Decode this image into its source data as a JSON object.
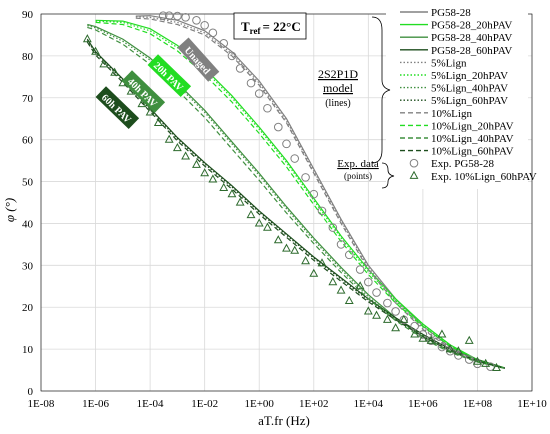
{
  "chart_data": {
    "type": "line",
    "title": "",
    "xlabel": "aT.fr (Hz)",
    "ylabel": "φ (°)",
    "x_scale": "log",
    "xlim": [
      1e-08,
      10000000000.0
    ],
    "ylim": [
      0,
      90
    ],
    "x_ticks": [
      "1E-08",
      "1E-06",
      "1E-04",
      "1E-02",
      "1E+00",
      "1E+02",
      "1E+04",
      "1E+06",
      "1E+08",
      "1E+10"
    ],
    "y_ticks": [
      "0",
      "10",
      "20",
      "30",
      "40",
      "50",
      "60",
      "70",
      "80",
      "90"
    ],
    "grid": "both",
    "legend_position": "top-right",
    "colors": {
      "unaged": "#808080",
      "h20": "#22dd22",
      "h40": "#3f8f3f",
      "h60": "#1d4d1d",
      "points": "#808080",
      "tri": "#2d6a2d"
    },
    "series": [
      {
        "name": "PG58-28",
        "style": "solid",
        "color": "unaged",
        "x": [
          3e-05,
          0.0001,
          0.001,
          0.01,
          0.1,
          1,
          10,
          100,
          1000,
          10000.0,
          100000.0,
          1000000.0,
          10000000.0,
          100000000.0,
          1000000000.0
        ],
        "y": [
          89.5,
          89.6,
          88.5,
          86,
          81,
          74,
          65,
          53,
          41,
          30,
          22,
          15.5,
          10.5,
          7.5,
          5.5
        ]
      },
      {
        "name": "PG58-28_20hPAV",
        "style": "solid",
        "color": "h20",
        "x": [
          1e-06,
          1e-05,
          0.0001,
          0.001,
          0.01,
          0.1,
          1,
          10,
          100,
          1000,
          10000.0,
          100000.0,
          1000000.0,
          10000000.0,
          100000000.0,
          1000000000.0
        ],
        "y": [
          88.5,
          88.3,
          86.5,
          82.5,
          77,
          70.5,
          63,
          55,
          46,
          37,
          29,
          22,
          16,
          11,
          7.5,
          5.5
        ]
      },
      {
        "name": "PG58-28_40hPAV",
        "style": "solid",
        "color": "h40",
        "x": [
          5e-07,
          1e-06,
          1e-05,
          0.0001,
          0.001,
          0.01,
          0.1,
          1,
          10,
          100,
          1000,
          10000.0,
          100000.0,
          1000000.0,
          10000000.0,
          100000000.0,
          1000000000.0
        ],
        "y": [
          87.5,
          87,
          84,
          79.5,
          73.5,
          67,
          59.5,
          52,
          44,
          36.5,
          29.5,
          23,
          17.5,
          13,
          9.5,
          7,
          5.5
        ]
      },
      {
        "name": "PG58-28_60hPAV",
        "style": "solid",
        "color": "h60",
        "x": [
          5e-07,
          1e-06,
          1e-05,
          0.0001,
          0.001,
          0.01,
          0.1,
          1,
          10,
          100,
          1000,
          10000.0,
          100000.0,
          1000000.0,
          10000000.0,
          100000000.0,
          1000000000.0
        ],
        "y": [
          84,
          81,
          74.5,
          67.5,
          60.5,
          54.5,
          49,
          43,
          37.5,
          32,
          27,
          22,
          17.5,
          13.5,
          10,
          7.5,
          5.5
        ]
      },
      {
        "name": "5%Lign",
        "style": "dotted",
        "color": "unaged",
        "x": [
          3e-05,
          0.0001,
          0.001,
          0.01,
          0.1,
          1,
          10,
          100,
          1000,
          10000.0,
          100000.0,
          1000000.0,
          10000000.0,
          100000000.0,
          1000000000.0
        ],
        "y": [
          89.3,
          89.2,
          88,
          85.5,
          80.5,
          73.5,
          64.5,
          52.5,
          40.5,
          29.5,
          21.5,
          15,
          10.3,
          7.4,
          5.5
        ]
      },
      {
        "name": "5%Lign_20hPAV",
        "style": "dotted",
        "color": "h20",
        "x": [
          1e-06,
          1e-05,
          0.0001,
          0.001,
          0.01,
          0.1,
          1,
          10,
          100,
          1000,
          10000.0,
          100000.0,
          1000000.0,
          10000000.0,
          100000000.0,
          1000000000.0
        ],
        "y": [
          88.3,
          88,
          86,
          82,
          76.5,
          70,
          62.5,
          54.5,
          45.5,
          36.5,
          28.5,
          21.5,
          15.8,
          10.9,
          7.4,
          5.5
        ]
      },
      {
        "name": "5%Lign_40hPAV",
        "style": "dotted",
        "color": "h40",
        "x": [
          5e-07,
          1e-06,
          1e-05,
          0.0001,
          0.001,
          0.01,
          0.1,
          1,
          10,
          100,
          1000,
          10000.0,
          100000.0,
          1000000.0,
          10000000.0,
          100000000.0,
          1000000000.0
        ],
        "y": [
          87.2,
          86.7,
          83.5,
          79,
          73,
          66.5,
          59,
          51.5,
          43.5,
          36,
          29,
          22.5,
          17.2,
          12.8,
          9.4,
          7,
          5.5
        ]
      },
      {
        "name": "5%Lign_60hPAV",
        "style": "dotted",
        "color": "h60",
        "x": [
          5e-07,
          1e-06,
          1e-05,
          0.0001,
          0.001,
          0.01,
          0.1,
          1,
          10,
          100,
          1000,
          10000.0,
          100000.0,
          1000000.0,
          10000000.0,
          100000000.0,
          1000000000.0
        ],
        "y": [
          83.7,
          80.7,
          74.2,
          67.2,
          60.2,
          54.2,
          48.7,
          42.7,
          37.2,
          31.7,
          26.7,
          21.7,
          17.3,
          13.3,
          9.9,
          7.4,
          5.5
        ]
      },
      {
        "name": "10%Lign",
        "style": "dashed",
        "color": "unaged",
        "x": [
          3e-05,
          0.0001,
          0.001,
          0.01,
          0.1,
          1,
          10,
          100,
          1000,
          10000.0,
          100000.0,
          1000000.0,
          10000000.0,
          100000000.0,
          1000000000.0
        ],
        "y": [
          89,
          88.8,
          87.5,
          85,
          80,
          73,
          64,
          52,
          40,
          29,
          21,
          14.7,
          10.1,
          7.3,
          5.4
        ]
      },
      {
        "name": "10%Lign_20hPAV",
        "style": "dashed",
        "color": "h20",
        "x": [
          1e-06,
          1e-05,
          0.0001,
          0.001,
          0.01,
          0.1,
          1,
          10,
          100,
          1000,
          10000.0,
          100000.0,
          1000000.0,
          10000000.0,
          100000000.0,
          1000000000.0
        ],
        "y": [
          88,
          87.5,
          85.3,
          81.2,
          75.5,
          69,
          61.5,
          53.5,
          44.5,
          35.7,
          27.8,
          21,
          15.4,
          10.7,
          7.3,
          5.4
        ]
      },
      {
        "name": "10%Lign_40hPAV",
        "style": "dashed",
        "color": "h40",
        "x": [
          5e-07,
          1e-06,
          1e-05,
          0.0001,
          0.001,
          0.01,
          0.1,
          1,
          10,
          100,
          1000,
          10000.0,
          100000.0,
          1000000.0,
          10000000.0,
          100000000.0,
          1000000000.0
        ],
        "y": [
          86.8,
          86.2,
          82.8,
          78,
          71.8,
          65.3,
          57.8,
          50.3,
          42.5,
          35.2,
          28.3,
          22,
          16.8,
          12.5,
          9.2,
          6.9,
          5.4
        ]
      },
      {
        "name": "10%Lign_60hPAV",
        "style": "dashed",
        "color": "h60",
        "x": [
          5e-07,
          1e-06,
          1e-05,
          0.0001,
          0.001,
          0.01,
          0.1,
          1,
          10,
          100,
          1000,
          10000.0,
          100000.0,
          1000000.0,
          10000000.0,
          100000000.0,
          1000000000.0
        ],
        "y": [
          83.3,
          80.2,
          73.7,
          66.7,
          59.7,
          53.7,
          48.2,
          42.2,
          36.7,
          31.2,
          26.2,
          21.3,
          17,
          13,
          9.7,
          7.2,
          5.4
        ]
      }
    ],
    "points": [
      {
        "name": "Exp. PG58-28",
        "marker": "circle",
        "color": "points",
        "x": [
          0.0003,
          0.0005,
          0.001,
          0.002,
          0.005,
          0.01,
          0.02,
          0.05,
          0.1,
          0.2,
          0.5,
          1,
          2,
          5,
          10,
          20,
          50,
          100,
          200,
          500,
          1000,
          2000,
          5000,
          10000.0,
          20000.0,
          50000.0,
          100000.0,
          200000.0,
          500000.0,
          1000000.0,
          2000000.0,
          5000000.0,
          10000000.0,
          20000000.0,
          50000000.0,
          100000000.0,
          300000000.0
        ],
        "y": [
          89.6,
          89.6,
          89.5,
          89.2,
          88.5,
          87.3,
          85.5,
          83,
          80,
          77,
          73.5,
          71,
          67.5,
          63,
          59,
          55.5,
          51,
          47,
          43,
          39,
          35,
          32.5,
          29,
          26,
          23.5,
          21,
          19,
          17,
          15.5,
          13.5,
          12,
          10.5,
          9.5,
          8.5,
          7.5,
          6.5,
          5.8
        ]
      },
      {
        "name": "Exp. 10%Lign_60hPAV",
        "marker": "triangle",
        "color": "tri",
        "x": [
          5e-07,
          1e-06,
          2e-06,
          5e-06,
          1e-05,
          2e-05,
          5e-05,
          0.0001,
          0.0002,
          0.0005,
          0.001,
          0.002,
          0.005,
          0.01,
          0.02,
          0.05,
          0.1,
          0.2,
          0.5,
          1,
          2,
          5,
          10,
          20,
          50,
          100,
          200,
          500,
          1000,
          2000,
          5000,
          10000.0,
          20000.0,
          50000.0,
          100000.0,
          200000.0,
          500000.0,
          1000000.0,
          2000000.0,
          5000000.0,
          10000000.0,
          20000000.0,
          50000000.0,
          100000000.0,
          200000000.0,
          500000000.0
        ],
        "y": [
          84,
          81,
          78,
          76,
          73.5,
          71.5,
          68.5,
          66.5,
          64,
          60,
          58,
          56,
          54,
          52,
          50.5,
          48.5,
          47,
          45,
          42,
          40,
          39,
          36,
          34,
          33.5,
          31,
          28,
          30.5,
          26,
          24,
          21.5,
          25,
          19,
          18,
          17,
          15,
          17,
          13.5,
          12.5,
          12,
          13.5,
          10,
          9.5,
          12,
          7,
          6.5,
          5.5
        ]
      }
    ],
    "annotations": {
      "tref": "T",
      "tref_sub": "ref",
      "tref_value": "= 22°C",
      "model_lines": [
        "2S2P1D",
        "model"
      ],
      "model_note": "(lines)",
      "exp_label": "Exp. data",
      "exp_note": "(points)",
      "aging_labels": [
        "Unaged",
        "20h PAV",
        "40h PAV",
        "60h PAV"
      ]
    }
  }
}
